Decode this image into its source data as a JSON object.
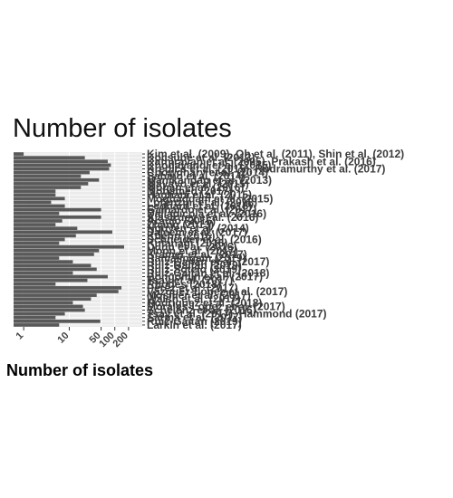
{
  "chart_data": {
    "type": "bar",
    "orientation": "horizontal",
    "title": "Number of isolates",
    "xlabel": "Number of isolates",
    "ylabel": "",
    "x_scale": "log10",
    "xlim": [
      0.6,
      400
    ],
    "x_ticks": [
      1,
      10,
      50,
      100,
      200
    ],
    "x_tick_labels": [
      "1",
      "10",
      "50",
      "100",
      "200"
    ],
    "grid": true,
    "bar_color": "#595959",
    "panel_color": "#ebebeb",
    "categories": [
      "Kim et al. (2009), Oh et al. (2011), Shin et al. (2012)",
      "Kocsubé et al. (2013)",
      "Kathiravan et al. (2005), Prakash et al. (2016)",
      "Khodavandi et al. (2015)",
      "Kredics et al. (2015), Rudramurthy et al. (2017)",
      "Chowdhary et al. (2014)",
      "Sabino et al. (2014)",
      "Manikandan et al. (2013)",
      "Mayayo et al. (2015)",
      "Mohan et al. (2016)",
      "Mohamed (2017)",
      "Haghani et al. (2015)",
      "Moghaddam et al. (2015)",
      "Lorenzini et al. (2018)",
      "Leonard et al. (2018)",
      "Galhardo et al. (2017)",
      "Dallapicola et al. (2016)",
      "Alastruey et al. (2016)",
      "Araújo (2016)",
      "Zhang (2013)",
      "Nguyen et al. (2014)",
      "Saleem et al. (2017)",
      "Kuehn (2016)",
      "Schneider et al. (2016)",
      "Kutanagi (2016)",
      "Dunn et al. (2016)",
      "Moon et al. (2017)",
      "Kramer et al. (2017)",
      "Ramalingam (2019)",
      "Ruiz-Gaitán et al. (2017)",
      "Ruiz-Gaitán (2019)",
      "Ruiz-Sotelo (2019)",
      "Ruiz-Gaitán et al. (2018)",
      "Bongomin et al. (2017)",
      "Tsay et al. (2017)",
      "Rhodes (2018)",
      "Pérez et al. (2017)",
      "Vázquez-López et al. (2017)",
      "Mosnier et al. (2017)",
      "Walsh et al. (2017)",
      "Rodríguez et al. (2018)",
      "Morales-López et al. (2017)",
      "Schelenz et al. (2016)",
      "Tsay et al. (2017), Hammond (2017)",
      "Sarma et al. (2017)",
      "Ruiz-Gaitán (2019)",
      "Larkin et al. (2017)"
    ],
    "values": [
      1,
      22,
      70,
      82,
      75,
      28,
      18,
      45,
      26,
      18,
      5,
      5,
      8,
      4,
      8,
      50,
      6,
      50,
      7,
      5,
      15,
      88,
      14,
      8,
      6,
      160,
      45,
      35,
      6,
      12,
      30,
      40,
      12,
      70,
      25,
      5,
      140,
      120,
      40,
      30,
      12,
      20,
      22,
      8,
      5,
      48,
      6
    ]
  }
}
